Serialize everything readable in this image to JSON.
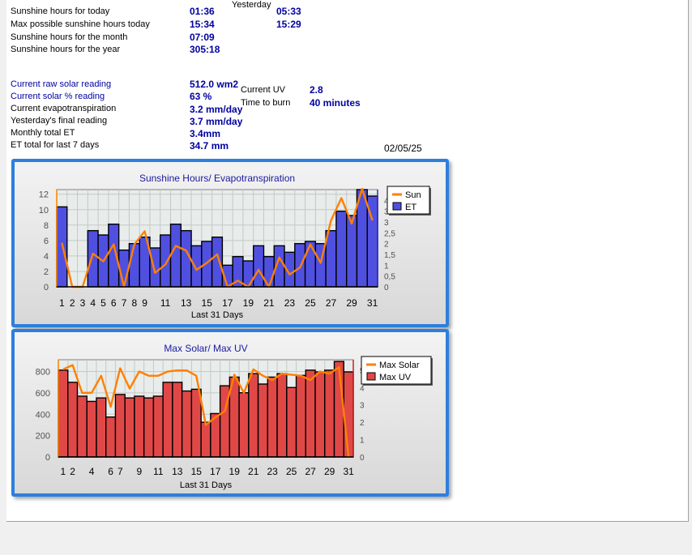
{
  "sunshine": {
    "yesterday_header": "Yesterday",
    "rows": [
      {
        "label": "Sunshine hours for today",
        "value": "01:36",
        "yesterday": "05:33"
      },
      {
        "label": "Max possible sunshine hours today",
        "value": "15:34",
        "yesterday": "15:29"
      },
      {
        "label": "Sunshine hours for the month",
        "value": "07:09",
        "yesterday": ""
      },
      {
        "label": "Sunshine hours for the year",
        "value": "305:18",
        "yesterday": ""
      }
    ]
  },
  "solar": {
    "rows": [
      {
        "label": "Current raw solar reading",
        "value": "512.0 wm2"
      },
      {
        "label": "Current solar % reading",
        "value": "63 %"
      },
      {
        "label": "Current evapotranspiration",
        "value": "3.2 mm/day"
      },
      {
        "label": "Yesterday's final reading",
        "value": "3.7 mm/day"
      },
      {
        "label": "Monthly total ET",
        "value": "3.4mm"
      },
      {
        "label": "ET total for last 7 days",
        "value": "34.7 mm"
      }
    ]
  },
  "uv": {
    "current_label": "Current UV",
    "current_value": "2.8",
    "burn_label": "Time to burn",
    "burn_value": "40 minutes"
  },
  "date": "02/05/25",
  "colors": {
    "frame": "#2d7fdc",
    "sun_line": "#ff8000",
    "et_bar": "#5050e0",
    "solar_line": "#ff8000",
    "uv_bar": "#e04848",
    "label_blue": "#0000a0"
  },
  "chart_data": [
    {
      "type": "bar",
      "title": "Sunshine Hours/ Evapotranspiration",
      "xlabel": "Last 31 Days",
      "x": [
        1,
        2,
        3,
        4,
        5,
        6,
        7,
        8,
        9,
        10,
        11,
        12,
        13,
        14,
        15,
        16,
        17,
        18,
        19,
        20,
        21,
        22,
        23,
        24,
        25,
        26,
        27,
        28,
        29,
        30,
        31
      ],
      "x_ticks": [
        "1",
        "2",
        "3",
        "4",
        "5",
        "6",
        "7",
        "8",
        "9",
        "11",
        "13",
        "15",
        "17",
        "19",
        "21",
        "23",
        "25",
        "27",
        "29",
        "31"
      ],
      "y_left_ticks": [
        "0",
        "2",
        "4",
        "6",
        "8",
        "10",
        "12"
      ],
      "y_right_ticks": [
        "0",
        "0,5",
        "1",
        "1,5",
        "2",
        "2,5",
        "3",
        "3,5",
        "4"
      ],
      "ylim_left": [
        0,
        12.6
      ],
      "ylim_right": [
        0,
        4.5
      ],
      "legend_position": "top-right",
      "series": [
        {
          "name": "Sun",
          "kind": "line",
          "axis": "left",
          "color": "#ff8000",
          "values": [
            5.7,
            0,
            0,
            4.3,
            3.3,
            5.5,
            0,
            5.5,
            7.2,
            1.8,
            2.9,
            5.3,
            4.7,
            2.2,
            3.1,
            4.2,
            0,
            0.8,
            0,
            2.2,
            0,
            3.8,
            1.6,
            2.5,
            5.5,
            3.1,
            8.6,
            11.5,
            8.2,
            12.7,
            8.6
          ]
        },
        {
          "name": "ET",
          "kind": "bar",
          "axis": "right",
          "color": "#5050e0",
          "values": [
            3.7,
            0,
            0,
            2.6,
            2.4,
            2.9,
            1.7,
            2.0,
            2.3,
            1.8,
            2.4,
            2.9,
            2.6,
            1.9,
            2.1,
            2.3,
            1.0,
            1.4,
            1.2,
            1.9,
            1.4,
            1.9,
            1.6,
            2.0,
            2.1,
            2.0,
            2.6,
            3.5,
            3.3,
            4.5,
            4.2
          ]
        }
      ]
    },
    {
      "type": "bar",
      "title": "Max Solar/ Max UV",
      "xlabel": "Last 31 Days",
      "x": [
        1,
        2,
        3,
        4,
        5,
        6,
        7,
        8,
        9,
        10,
        11,
        12,
        13,
        14,
        15,
        16,
        17,
        18,
        19,
        20,
        21,
        22,
        23,
        24,
        25,
        26,
        27,
        28,
        29,
        30,
        31
      ],
      "x_ticks": [
        "1",
        "2",
        "4",
        "6",
        "7",
        "9",
        "11",
        "13",
        "15",
        "17",
        "19",
        "21",
        "23",
        "25",
        "27",
        "29",
        "31"
      ],
      "y_left_ticks": [
        "0",
        "200",
        "400",
        "600",
        "800"
      ],
      "y_right_ticks": [
        "0",
        "1",
        "2",
        "3",
        "4",
        "5"
      ],
      "ylim_left": [
        0,
        910
      ],
      "ylim_right": [
        0,
        5.6
      ],
      "legend_position": "top-right",
      "series": [
        {
          "name": "Max Solar",
          "kind": "line",
          "axis": "left",
          "color": "#ff8000",
          "values": [
            820,
            860,
            600,
            600,
            760,
            470,
            830,
            640,
            800,
            760,
            760,
            800,
            810,
            810,
            760,
            300,
            370,
            430,
            770,
            600,
            820,
            760,
            720,
            780,
            770,
            760,
            720,
            800,
            780,
            840,
            0
          ]
        },
        {
          "name": "Max UV",
          "kind": "bar",
          "axis": "right",
          "color": "#e04848",
          "values": [
            5.0,
            4.3,
            3.5,
            3.2,
            3.4,
            2.3,
            3.6,
            3.4,
            3.5,
            3.4,
            3.5,
            4.3,
            4.3,
            3.8,
            3.9,
            2.0,
            2.5,
            4.1,
            4.6,
            3.7,
            4.8,
            4.2,
            4.6,
            4.8,
            4.0,
            4.7,
            5.0,
            4.9,
            5.0,
            5.5,
            4.9
          ]
        }
      ]
    }
  ]
}
